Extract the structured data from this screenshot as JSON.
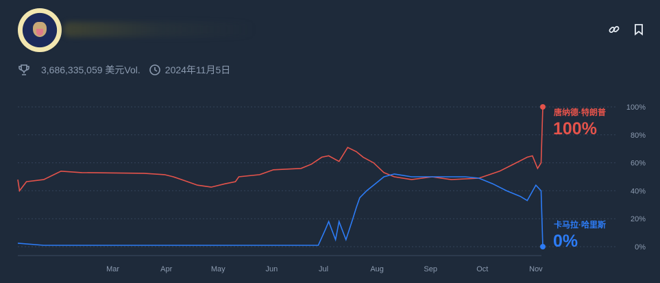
{
  "header": {
    "title": "",
    "volume": "3,686,335,059 美元Vol.",
    "end_date": "2024年11月5日"
  },
  "icons": {
    "link": "link-icon",
    "bookmark": "bookmark-icon",
    "trophy": "trophy-icon",
    "clock": "clock-icon"
  },
  "chart_data": {
    "type": "line",
    "x_range": [
      "2024-01-06",
      "2024-11-05"
    ],
    "ylim": [
      0,
      100
    ],
    "y_ticks": [
      0,
      20,
      40,
      60,
      80,
      100
    ],
    "y_tick_labels": [
      "0%",
      "20%",
      "40%",
      "60%",
      "80%",
      "100%"
    ],
    "x_ticks": [
      "2024-03-01",
      "2024-04-01",
      "2024-05-01",
      "2024-06-01",
      "2024-07-01",
      "2024-08-01",
      "2024-09-01",
      "2024-10-01",
      "2024-11-01"
    ],
    "x_tick_labels": [
      "Mar",
      "Apr",
      "May",
      "Jun",
      "Jul",
      "Aug",
      "Sep",
      "Oct",
      "Nov"
    ],
    "grid": true,
    "series": [
      {
        "name": "唐纳德·特朗普",
        "label": "100%",
        "color": "#e5534b",
        "points": [
          [
            "2024-01-06",
            48
          ],
          [
            "2024-01-07",
            40
          ],
          [
            "2024-01-11",
            46.5
          ],
          [
            "2024-01-21",
            48
          ],
          [
            "2024-01-31",
            54
          ],
          [
            "2024-02-12",
            53
          ],
          [
            "2024-03-19",
            52.5
          ],
          [
            "2024-03-31",
            51.5
          ],
          [
            "2024-04-05",
            50
          ],
          [
            "2024-04-11",
            47.5
          ],
          [
            "2024-04-19",
            44
          ],
          [
            "2024-04-27",
            42.6
          ],
          [
            "2024-05-05",
            45
          ],
          [
            "2024-05-11",
            46.5
          ],
          [
            "2024-05-13",
            50
          ],
          [
            "2024-05-25",
            51.5
          ],
          [
            "2024-06-02",
            55
          ],
          [
            "2024-06-18",
            56
          ],
          [
            "2024-06-24",
            59
          ],
          [
            "2024-06-30",
            64
          ],
          [
            "2024-07-04",
            65
          ],
          [
            "2024-07-10",
            61
          ],
          [
            "2024-07-15",
            71
          ],
          [
            "2024-07-20",
            68
          ],
          [
            "2024-07-24",
            64
          ],
          [
            "2024-07-30",
            60
          ],
          [
            "2024-08-05",
            53
          ],
          [
            "2024-08-11",
            50
          ],
          [
            "2024-08-21",
            48
          ],
          [
            "2024-09-02",
            50
          ],
          [
            "2024-09-13",
            48
          ],
          [
            "2024-09-29",
            49
          ],
          [
            "2024-10-11",
            54
          ],
          [
            "2024-10-19",
            59
          ],
          [
            "2024-10-27",
            64
          ],
          [
            "2024-10-30",
            65
          ],
          [
            "2024-11-02",
            56
          ],
          [
            "2024-11-04",
            60
          ],
          [
            "2024-11-05",
            100
          ]
        ]
      },
      {
        "name": "卡马拉·哈里斯",
        "label": "0%",
        "color": "#2d7cf6",
        "points": [
          [
            "2024-01-06",
            2.5
          ],
          [
            "2024-01-21",
            1
          ],
          [
            "2024-03-01",
            1
          ],
          [
            "2024-05-01",
            1
          ],
          [
            "2024-06-28",
            1
          ],
          [
            "2024-07-02",
            12
          ],
          [
            "2024-07-04",
            18
          ],
          [
            "2024-07-08",
            5
          ],
          [
            "2024-07-10",
            18
          ],
          [
            "2024-07-14",
            5
          ],
          [
            "2024-07-18",
            20
          ],
          [
            "2024-07-20",
            28
          ],
          [
            "2024-07-22",
            35
          ],
          [
            "2024-07-26",
            40
          ],
          [
            "2024-07-31",
            45
          ],
          [
            "2024-08-05",
            50
          ],
          [
            "2024-08-11",
            52
          ],
          [
            "2024-08-21",
            50
          ],
          [
            "2024-09-05",
            50
          ],
          [
            "2024-09-21",
            50
          ],
          [
            "2024-09-29",
            49
          ],
          [
            "2024-10-07",
            45
          ],
          [
            "2024-10-15",
            40
          ],
          [
            "2024-10-23",
            36
          ],
          [
            "2024-10-27",
            33
          ],
          [
            "2024-11-01",
            44
          ],
          [
            "2024-11-04",
            40
          ],
          [
            "2024-11-05",
            0
          ]
        ]
      }
    ]
  }
}
